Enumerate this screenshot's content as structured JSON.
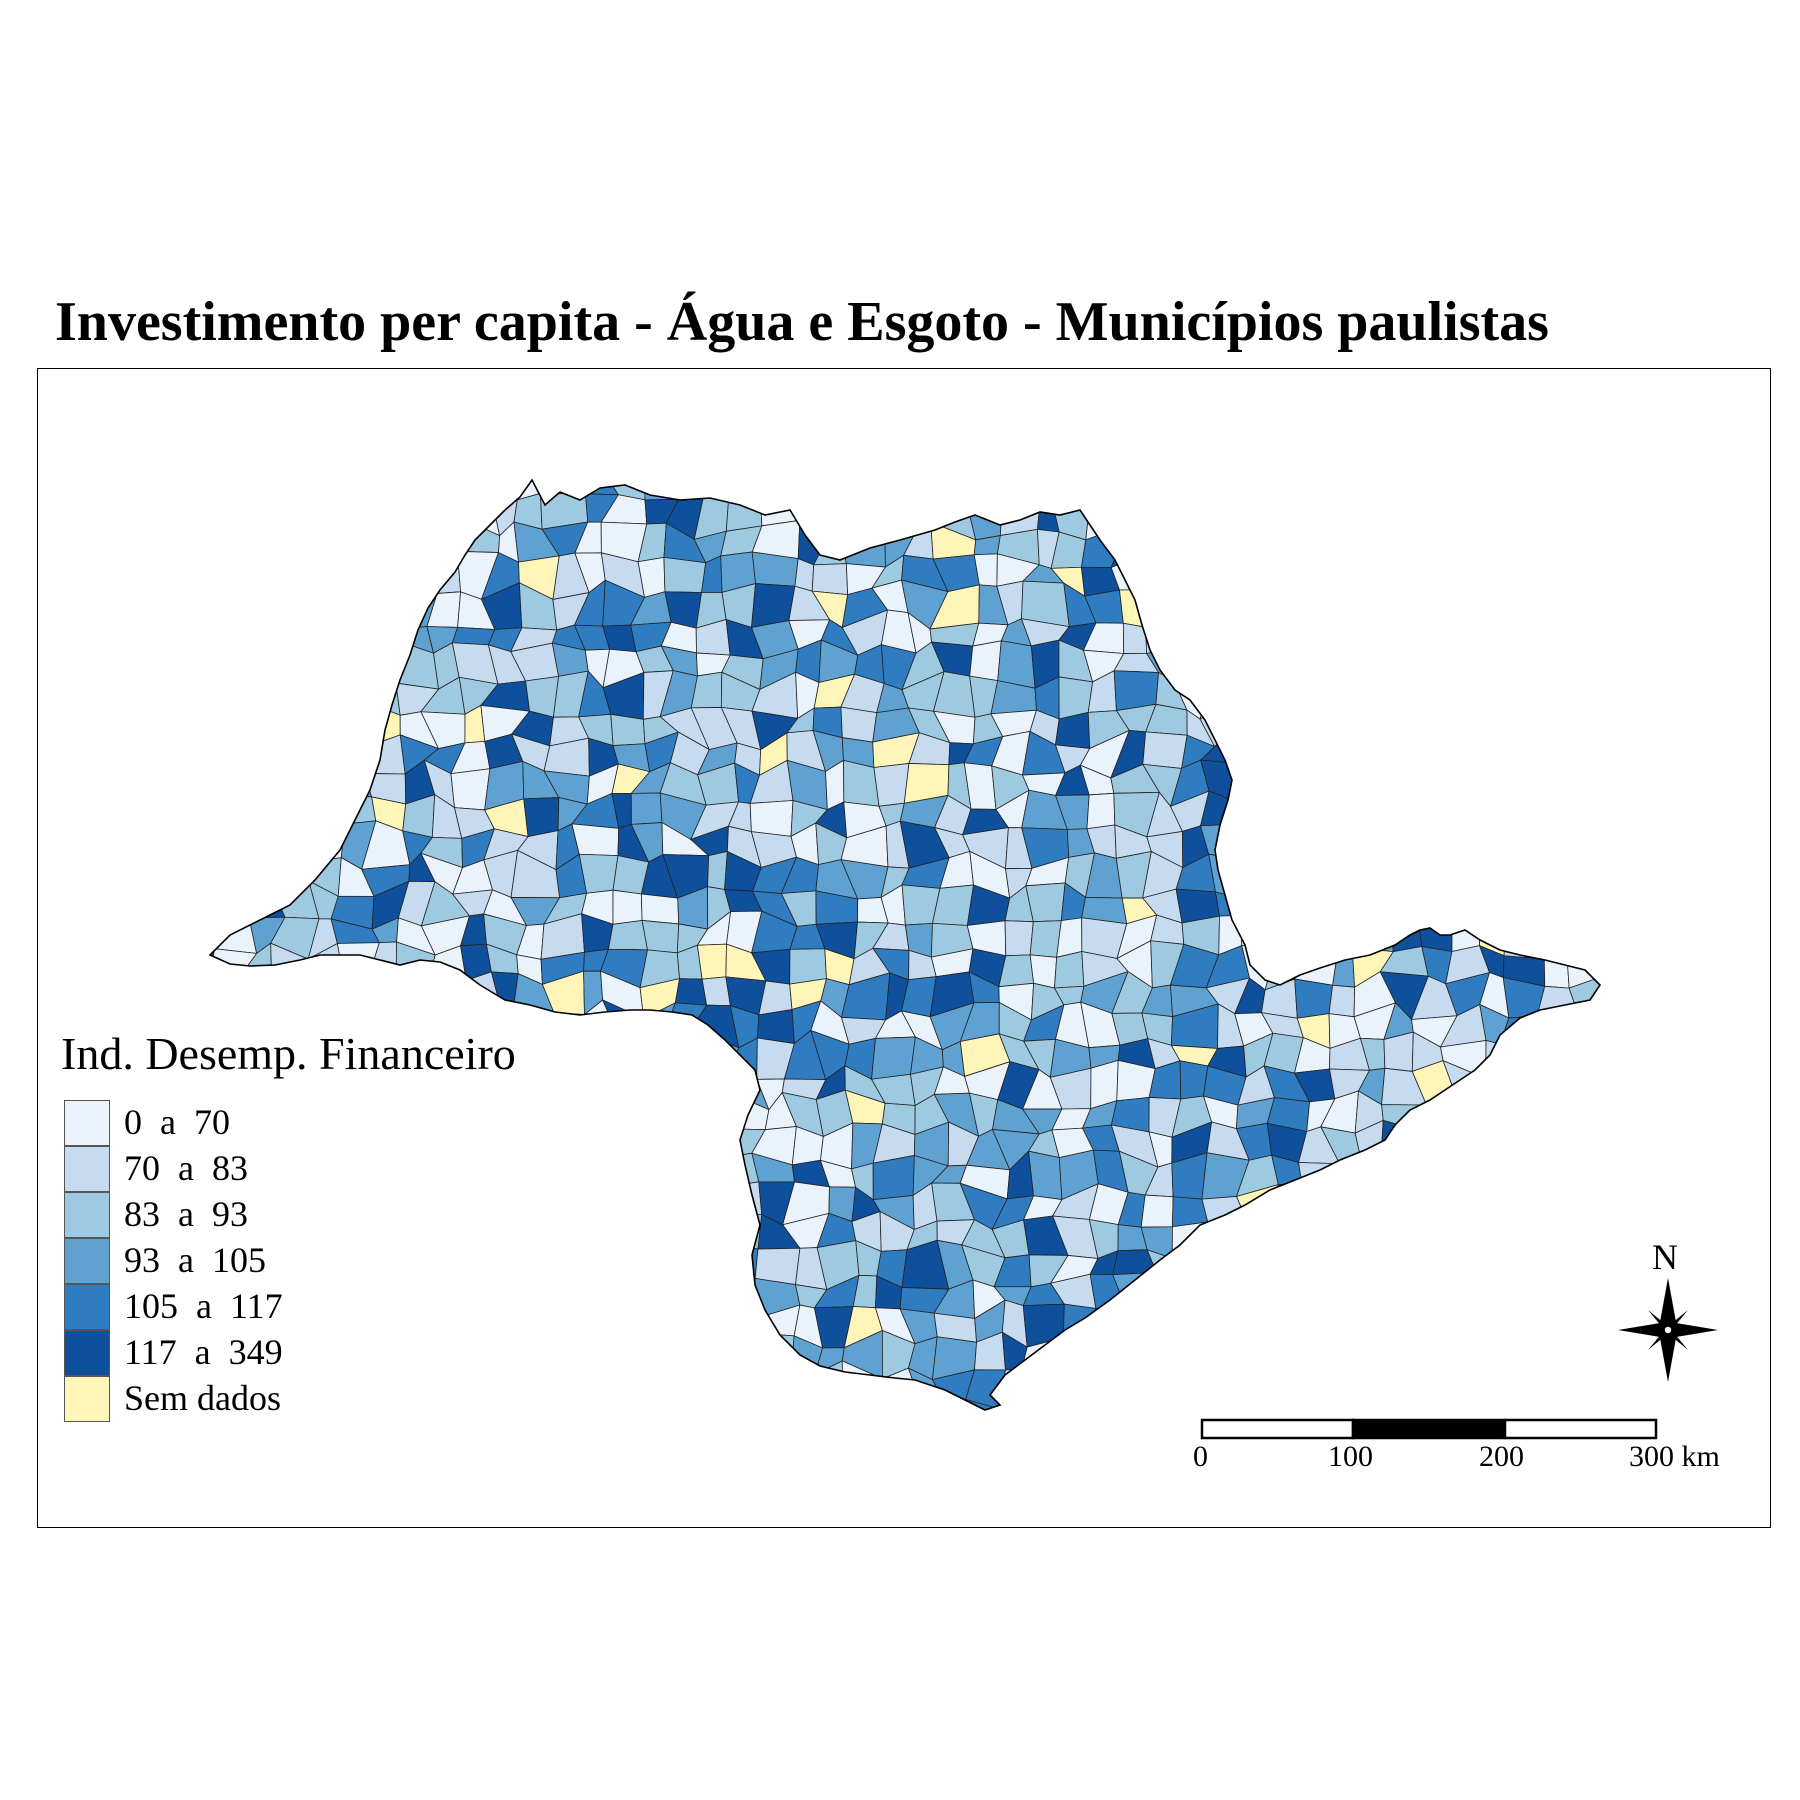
{
  "title": "Investimento per capita - Água e Esgoto - Municípios paulistas",
  "legend": {
    "title": "Ind. Desemp. Financeiro",
    "items": [
      {
        "label": "0  a  70",
        "color": "#eaf2fb"
      },
      {
        "label": "70  a  83",
        "color": "#c6dbef"
      },
      {
        "label": "83  a  93",
        "color": "#9ecae1"
      },
      {
        "label": "93  a  105",
        "color": "#5fa2d2"
      },
      {
        "label": "105  a  117",
        "color": "#2f7dc0"
      },
      {
        "label": "117  a  349",
        "color": "#0f509c"
      },
      {
        "label": "Sem dados",
        "color": "#fff5b8"
      }
    ]
  },
  "north_arrow": {
    "label": "N"
  },
  "scale_bar": {
    "labels": [
      "0",
      "100",
      "200",
      "300  km"
    ],
    "unit": "km"
  }
}
